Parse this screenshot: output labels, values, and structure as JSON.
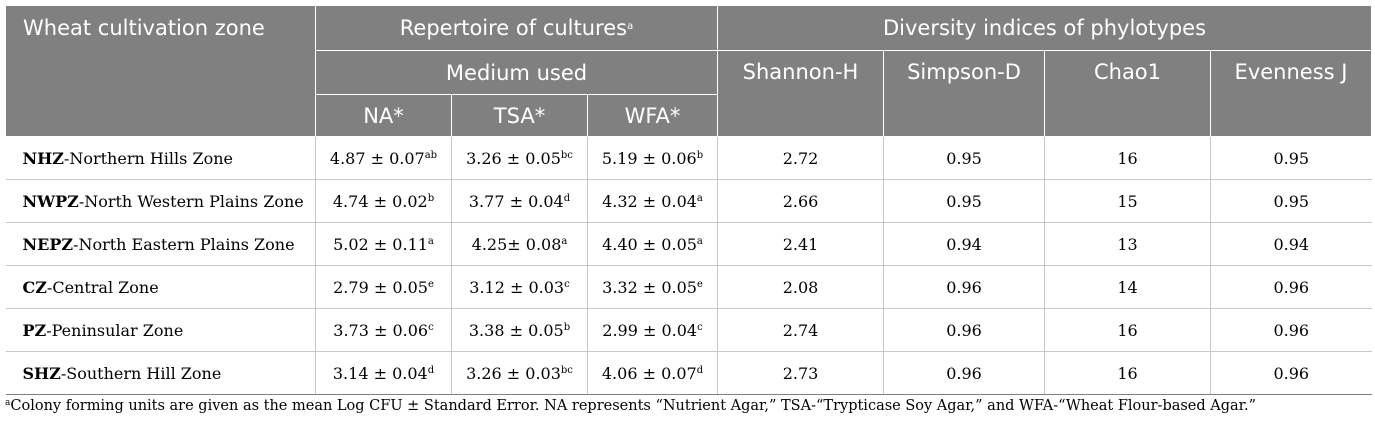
{
  "header": {
    "zone_col": "Wheat cultivation zone",
    "repertoire": "Repertoire of cultures",
    "repertoire_sup": "a",
    "medium": "Medium used",
    "media": [
      "NA*",
      "TSA*",
      "WFA*"
    ],
    "diversity": "Diversity indices of phylotypes",
    "indices": [
      "Shannon-H",
      "Simpson-D",
      "Chao1",
      "Evenness J"
    ]
  },
  "rows": [
    {
      "abbr": "NHZ",
      "name": "-Northern Hills Zone",
      "na": "4.87 ± 0.07",
      "na_sup": "ab",
      "tsa": "3.26 ± 0.05",
      "tsa_sup": "bc",
      "wfa": "5.19 ± 0.06",
      "wfa_sup": "b",
      "shannon": "2.72",
      "simpson": "0.95",
      "chao1": "16",
      "evenness": "0.95"
    },
    {
      "abbr": "NWPZ",
      "name": "-North Western Plains Zone",
      "na": "4.74 ± 0.02",
      "na_sup": "b",
      "tsa": "3.77 ± 0.04",
      "tsa_sup": "d",
      "wfa": "4.32 ± 0.04",
      "wfa_sup": "a",
      "shannon": "2.66",
      "simpson": "0.95",
      "chao1": "15",
      "evenness": "0.95"
    },
    {
      "abbr": "NEPZ",
      "name": "-North Eastern Plains Zone",
      "na": "5.02 ± 0.11",
      "na_sup": "a",
      "tsa": "4.25± 0.08",
      "tsa_sup": "a",
      "wfa": "4.40 ± 0.05",
      "wfa_sup": "a",
      "shannon": "2.41",
      "simpson": "0.94",
      "chao1": "13",
      "evenness": "0.94"
    },
    {
      "abbr": "CZ",
      "name": "-Central Zone",
      "na": "2.79 ± 0.05",
      "na_sup": "e",
      "tsa": "3.12 ± 0.03",
      "tsa_sup": "c",
      "wfa": "3.32 ± 0.05",
      "wfa_sup": "e",
      "shannon": "2.08",
      "simpson": "0.96",
      "chao1": "14",
      "evenness": "0.96"
    },
    {
      "abbr": "PZ",
      "name": "-Peninsular Zone",
      "na": "3.73 ± 0.06",
      "na_sup": "c",
      "tsa": "3.38 ± 0.05",
      "tsa_sup": "b",
      "wfa": "2.99 ± 0.04",
      "wfa_sup": "c",
      "shannon": "2.74",
      "simpson": "0.96",
      "chao1": "16",
      "evenness": "0.96"
    },
    {
      "abbr": "SHZ",
      "name": "-Southern Hill Zone",
      "na": "3.14 ± 0.04",
      "na_sup": "d",
      "tsa": "3.26 ± 0.03",
      "tsa_sup": "bc",
      "wfa": "4.06 ± 0.07",
      "wfa_sup": "d",
      "shannon": "2.73",
      "simpson": "0.96",
      "chao1": "16",
      "evenness": "0.96"
    }
  ],
  "footnote": {
    "sup": "a",
    "text": "Colony forming units are given as the mean Log CFU ± Standard Error. NA represents “Nutrient Agar,” TSA-“Trypticase Soy Agar,” and WFA-“Wheat Flour-based Agar.”"
  },
  "colors": {
    "header_bg": "#808080",
    "header_text": "#ffffff",
    "rule": "#c8c8c8"
  }
}
